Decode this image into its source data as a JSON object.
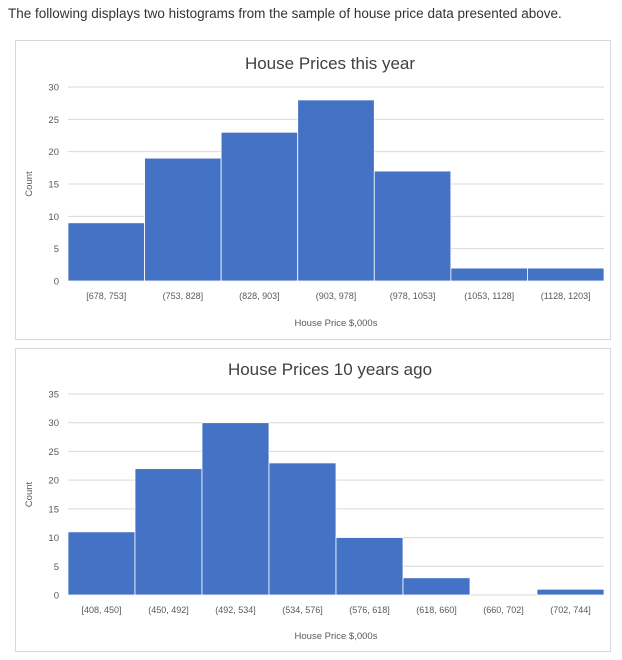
{
  "intro_text": "The following displays two histograms from the sample of house price data presented above.",
  "colors": {
    "bar": "#4472c4",
    "grid": "#d9d9d9",
    "text": "#595959",
    "title": "#404040"
  },
  "chart_data": [
    {
      "type": "bar",
      "title": "House Prices this year",
      "xlabel": "House Price $,000s",
      "ylabel": "Count",
      "ylim": [
        0,
        30
      ],
      "yticks": [
        0,
        5,
        10,
        15,
        20,
        25,
        30
      ],
      "grid": true,
      "categories": [
        "[678, 753]",
        "(753, 828]",
        "(828, 903]",
        "(903, 978]",
        "(978, 1053]",
        "(1053, 1128]",
        "(1128, 1203]"
      ],
      "values": [
        9,
        19,
        23,
        28,
        17,
        2,
        2
      ]
    },
    {
      "type": "bar",
      "title": "House Prices 10 years ago",
      "xlabel": "House Price $,000s",
      "ylabel": "Count",
      "ylim": [
        0,
        35
      ],
      "yticks": [
        0,
        5,
        10,
        15,
        20,
        25,
        30,
        35
      ],
      "grid": true,
      "categories": [
        "[408, 450]",
        "(450, 492]",
        "(492, 534]",
        "(534, 576]",
        "(576, 618]",
        "(618, 660]",
        "(660, 702]",
        "(702, 744]"
      ],
      "values": [
        11,
        22,
        30,
        23,
        10,
        3,
        0,
        1
      ]
    }
  ]
}
